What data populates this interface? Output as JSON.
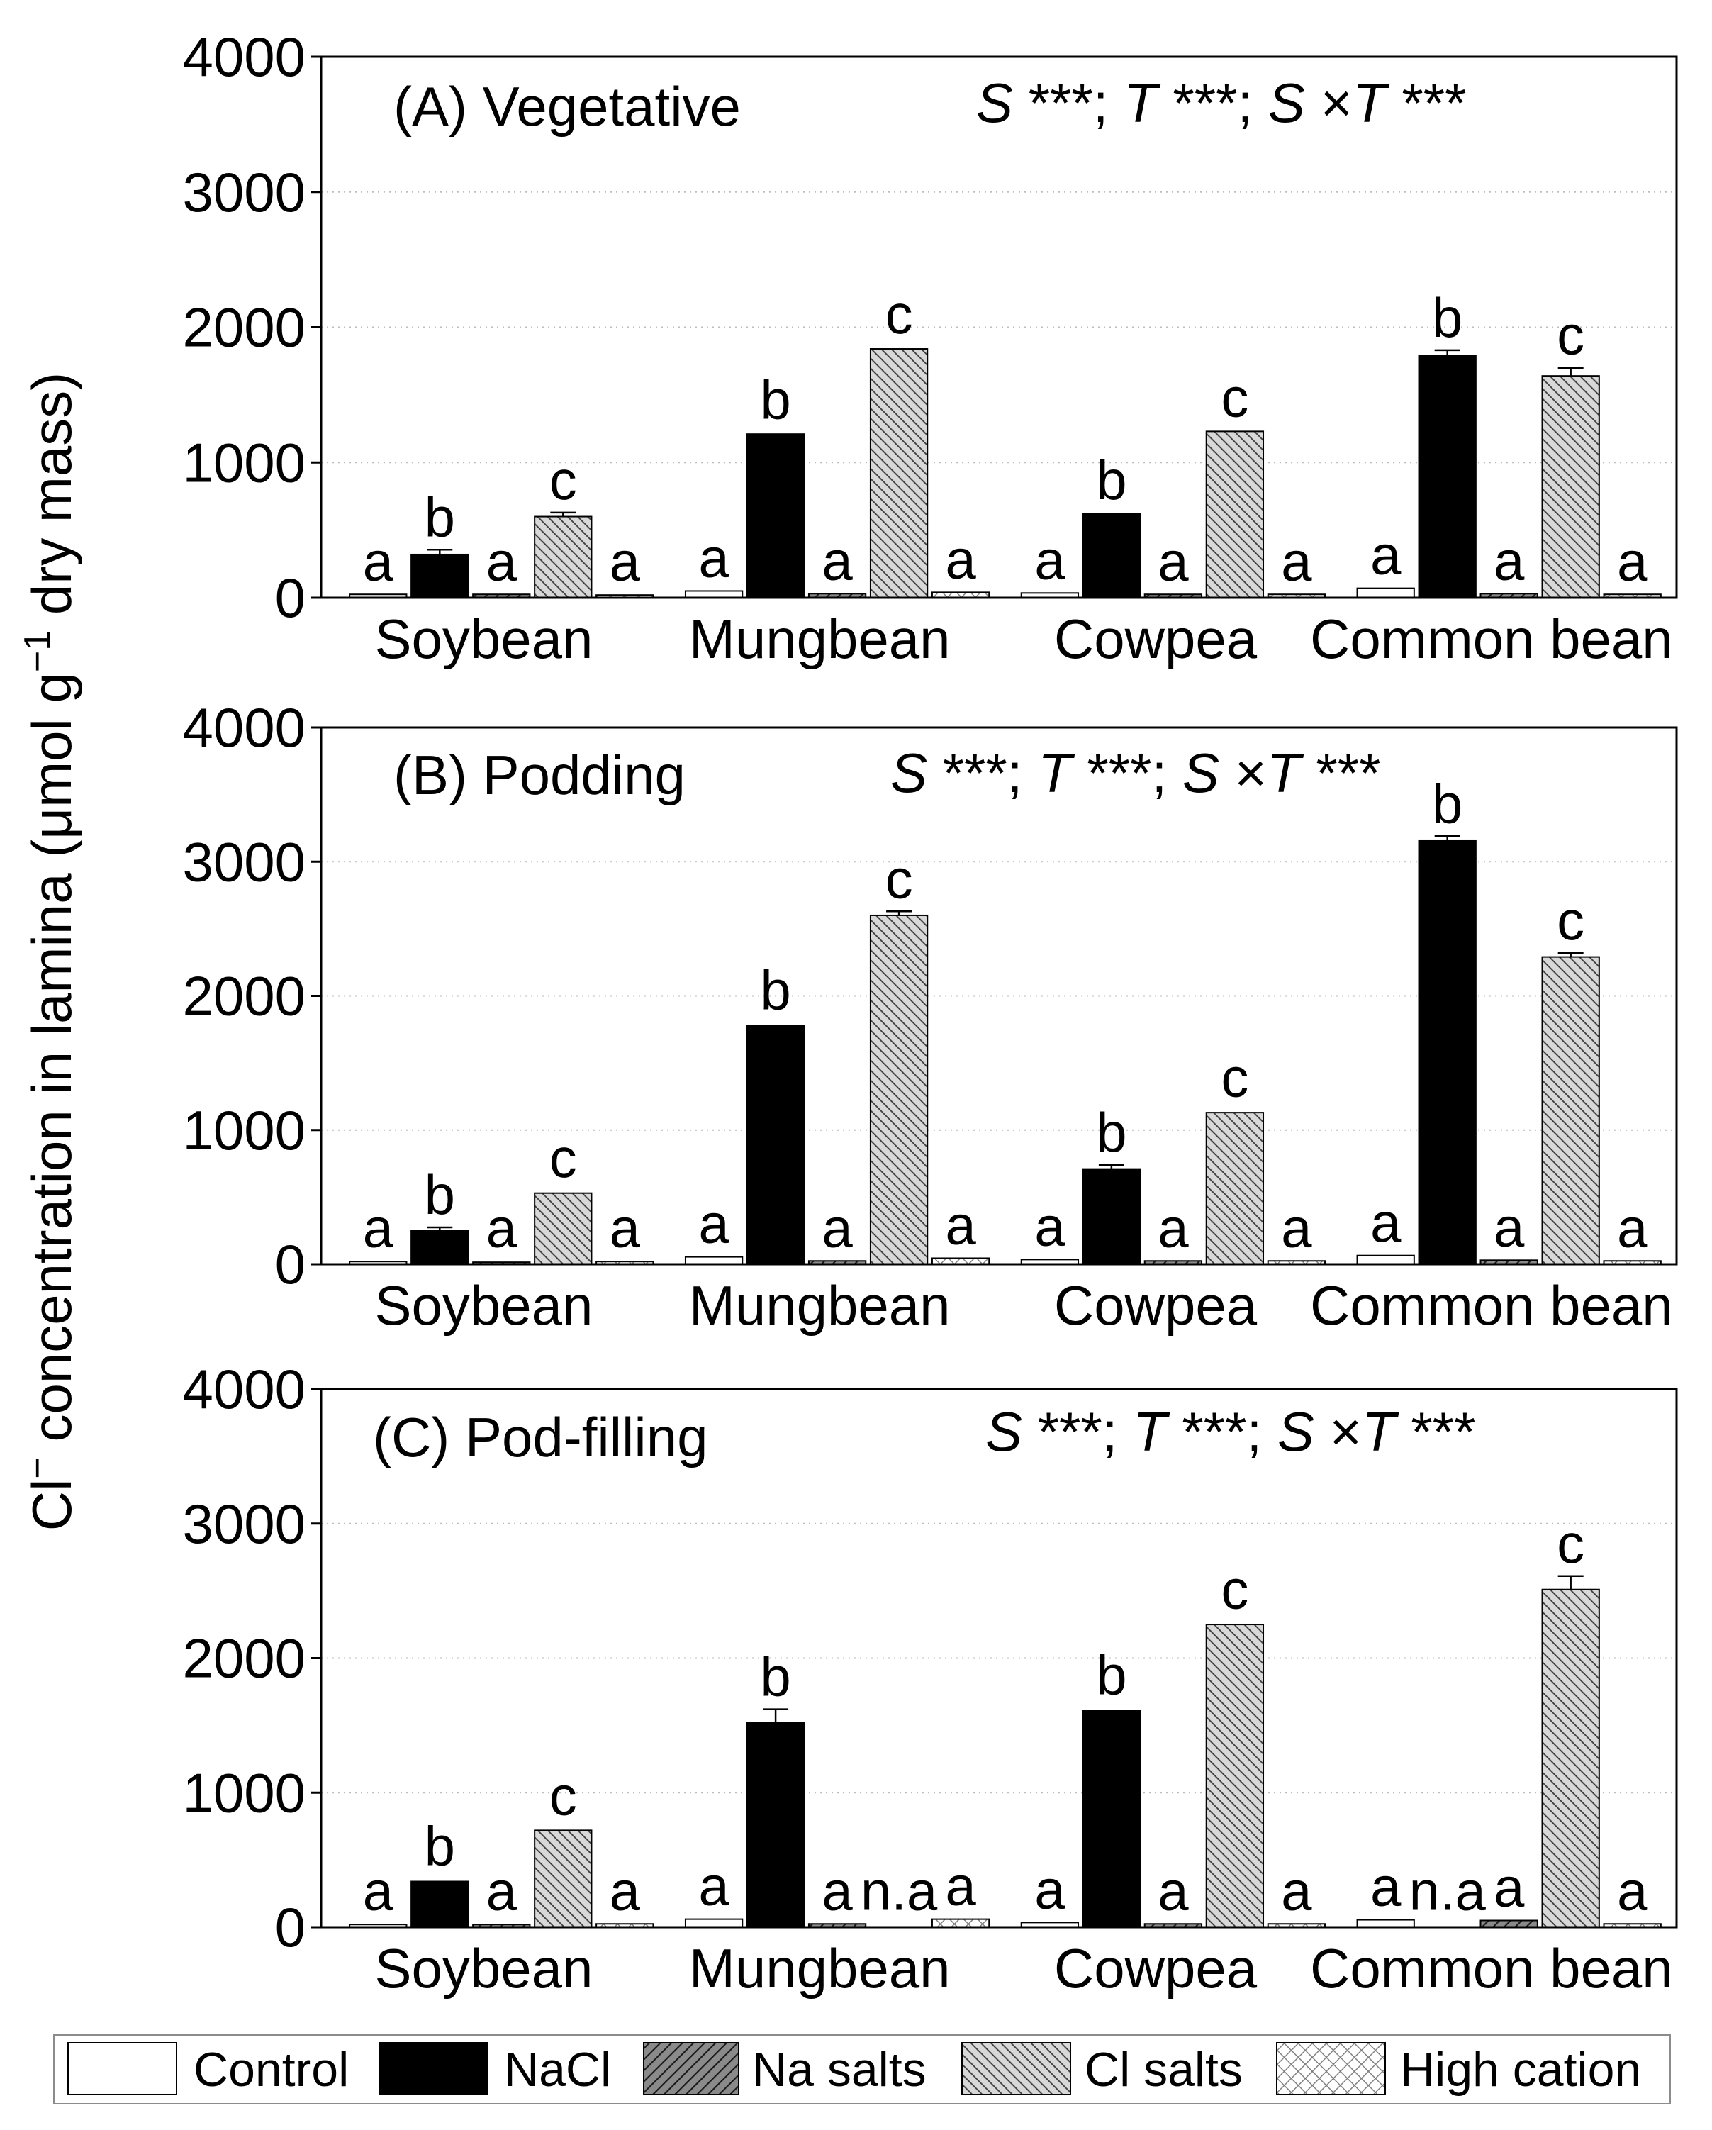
{
  "figure": {
    "ylabel": [
      "Cl",
      "−",
      " concentration in lamina (μmol g",
      "−1",
      " dry mass)"
    ],
    "legend": [
      {
        "label": "Control",
        "color": "#ffffff"
      },
      {
        "label": "NaCl",
        "color": "#000000"
      },
      {
        "label": "Na salts",
        "color": "#8a8a8a"
      },
      {
        "label": "Cl salts",
        "color": "#d8d8d8"
      },
      {
        "label": "High cation",
        "color": "#ffffff"
      }
    ]
  },
  "chart_data": [
    {
      "type": "bar",
      "title": "(A) Vegetative",
      "stats": [
        {
          "text": "S",
          "italic": true
        },
        {
          "text": " ***; ",
          "italic": false
        },
        {
          "text": "T",
          "italic": true
        },
        {
          "text": " ***; ",
          "italic": false
        },
        {
          "text": "S",
          "italic": true
        },
        {
          "text": " ×",
          "italic": false
        },
        {
          "text": "T",
          "italic": true
        },
        {
          "text": " ***",
          "italic": false
        }
      ],
      "ylim": [
        0,
        4000
      ],
      "yticks": [
        0,
        1000,
        2000,
        3000,
        4000
      ],
      "grid": true,
      "categories": [
        "Soybean",
        "Mungbean",
        "Cowpea",
        "Common bean"
      ],
      "series": [
        {
          "name": "Control",
          "values": [
            25,
            50,
            35,
            70
          ],
          "errors": [
            5,
            5,
            5,
            5
          ],
          "letters": [
            "a",
            "a",
            "a",
            "a"
          ]
        },
        {
          "name": "NaCl",
          "values": [
            320,
            1210,
            620,
            1790
          ],
          "errors": [
            35,
            15,
            10,
            40
          ],
          "letters": [
            "b",
            "b",
            "b",
            "b"
          ]
        },
        {
          "name": "Na salts",
          "values": [
            25,
            30,
            25,
            30
          ],
          "errors": [
            5,
            5,
            5,
            5
          ],
          "letters": [
            "a",
            "a",
            "a",
            "a"
          ]
        },
        {
          "name": "Cl salts",
          "values": [
            600,
            1840,
            1230,
            1640
          ],
          "errors": [
            30,
            15,
            10,
            60
          ],
          "letters": [
            "c",
            "c",
            "c",
            "c"
          ]
        },
        {
          "name": "High cation",
          "values": [
            20,
            40,
            25,
            25
          ],
          "errors": [
            5,
            5,
            5,
            5
          ],
          "letters": [
            "a",
            "a",
            "a",
            "a"
          ]
        }
      ]
    },
    {
      "type": "bar",
      "title": "(B) Podding",
      "stats": [
        {
          "text": "S",
          "italic": true
        },
        {
          "text": " ***; ",
          "italic": false
        },
        {
          "text": "T",
          "italic": true
        },
        {
          "text": " ***; ",
          "italic": false
        },
        {
          "text": "S",
          "italic": true
        },
        {
          "text": " ×",
          "italic": false
        },
        {
          "text": "T",
          "italic": true
        },
        {
          "text": " ***",
          "italic": false
        }
      ],
      "ylim": [
        0,
        4000
      ],
      "yticks": [
        0,
        1000,
        2000,
        3000,
        4000
      ],
      "grid": true,
      "categories": [
        "Soybean",
        "Mungbean",
        "Cowpea",
        "Common bean"
      ],
      "series": [
        {
          "name": "Control",
          "values": [
            20,
            55,
            35,
            65
          ],
          "errors": [
            5,
            5,
            5,
            5
          ],
          "letters": [
            "a",
            "a",
            "a",
            "a"
          ]
        },
        {
          "name": "NaCl",
          "values": [
            250,
            1780,
            710,
            3160
          ],
          "errors": [
            25,
            20,
            30,
            30
          ],
          "letters": [
            "b",
            "b",
            "b",
            "b"
          ]
        },
        {
          "name": "Na salts",
          "values": [
            15,
            25,
            25,
            30
          ],
          "errors": [
            5,
            5,
            5,
            5
          ],
          "letters": [
            "a",
            "a",
            "a",
            "a"
          ]
        },
        {
          "name": "Cl salts",
          "values": [
            530,
            2600,
            1130,
            2290
          ],
          "errors": [
            20,
            30,
            20,
            30
          ],
          "letters": [
            "c",
            "c",
            "c",
            "c"
          ]
        },
        {
          "name": "High cation",
          "values": [
            20,
            45,
            25,
            25
          ],
          "errors": [
            5,
            5,
            5,
            5
          ],
          "letters": [
            "a",
            "a",
            "a",
            "a"
          ]
        }
      ]
    },
    {
      "type": "bar",
      "title": "(C) Pod-filling",
      "stats": [
        {
          "text": "S",
          "italic": true
        },
        {
          "text": " ***; ",
          "italic": false
        },
        {
          "text": "T",
          "italic": true
        },
        {
          "text": " ***; ",
          "italic": false
        },
        {
          "text": "S",
          "italic": true
        },
        {
          "text": " ×",
          "italic": false
        },
        {
          "text": "T",
          "italic": true
        },
        {
          "text": " ***",
          "italic": false
        }
      ],
      "ylim": [
        0,
        4000
      ],
      "yticks": [
        0,
        1000,
        2000,
        3000,
        4000
      ],
      "grid": true,
      "categories": [
        "Soybean",
        "Mungbean",
        "Cowpea",
        "Common bean"
      ],
      "series": [
        {
          "name": "Control",
          "values": [
            20,
            60,
            35,
            55
          ],
          "errors": [
            5,
            5,
            5,
            5
          ],
          "letters": [
            "a",
            "a",
            "a",
            "a"
          ]
        },
        {
          "name": "NaCl",
          "values": [
            340,
            1520,
            1610,
            null
          ],
          "errors": [
            20,
            100,
            20,
            null
          ],
          "letters": [
            "b",
            "b",
            "b",
            "n.a"
          ]
        },
        {
          "name": "Na salts",
          "values": [
            20,
            25,
            25,
            50
          ],
          "errors": [
            5,
            5,
            5,
            5
          ],
          "letters": [
            "a",
            "a",
            "a",
            "a"
          ]
        },
        {
          "name": "Cl salts",
          "values": [
            720,
            null,
            2250,
            2510
          ],
          "errors": [
            15,
            null,
            20,
            100
          ],
          "letters": [
            "c",
            "n.a",
            "c",
            "c"
          ]
        },
        {
          "name": "High cation",
          "values": [
            25,
            60,
            25,
            25
          ],
          "errors": [
            5,
            5,
            5,
            5
          ],
          "letters": [
            "a",
            "a",
            "a",
            "a"
          ]
        }
      ]
    }
  ]
}
